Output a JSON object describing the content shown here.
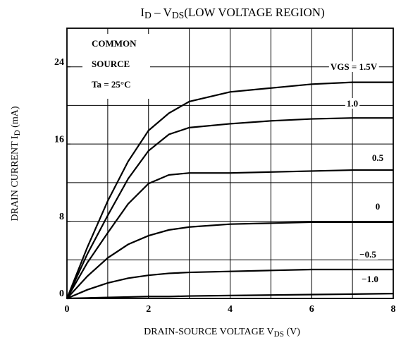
{
  "chart_data": {
    "type": "line",
    "title": [
      {
        "text": "I",
        "sub": false
      },
      {
        "text": "D",
        "sub": true
      },
      {
        "text": " – V",
        "sub": false
      },
      {
        "text": "DS",
        "sub": true
      },
      {
        "text": "(LOW VOLTAGE REGION)",
        "sub": false
      }
    ],
    "x_label": [
      {
        "text": "DRAIN-SOURCE  VOLTAGE  V",
        "sub": false
      },
      {
        "text": "DS",
        "sub": true
      },
      {
        "text": " (V)",
        "sub": false
      }
    ],
    "y_label": [
      {
        "text": "DRAIN  CURRENT  I",
        "sub": false
      },
      {
        "text": "D",
        "sub": true
      },
      {
        "text": "  (mA)",
        "sub": false
      }
    ],
    "annotations": [
      "COMMON",
      "SOURCE",
      "Ta = 25°C"
    ],
    "x": [
      0,
      0.5,
      1,
      1.5,
      2,
      2.5,
      3,
      4,
      5,
      6,
      7,
      8
    ],
    "series": [
      {
        "name": "VGS = 1.5V",
        "color": "#000000",
        "values": [
          0,
          5.3,
          10.1,
          14.2,
          17.4,
          19.2,
          20.4,
          21.4,
          21.8,
          22.2,
          22.4,
          22.4
        ]
      },
      {
        "name": "1.0",
        "color": "#000000",
        "values": [
          0,
          4.6,
          8.6,
          12.4,
          15.3,
          17.0,
          17.7,
          18.1,
          18.4,
          18.6,
          18.7,
          18.7
        ]
      },
      {
        "name": "0.5",
        "color": "#000000",
        "values": [
          0,
          3.7,
          6.8,
          9.8,
          11.9,
          12.8,
          13.0,
          13.0,
          13.1,
          13.2,
          13.3,
          13.3
        ]
      },
      {
        "name": "0",
        "color": "#000000",
        "values": [
          0,
          2.3,
          4.2,
          5.6,
          6.5,
          7.1,
          7.4,
          7.7,
          7.8,
          7.9,
          7.9,
          7.9
        ]
      },
      {
        "name": "−0.5",
        "color": "#000000",
        "values": [
          0,
          0.9,
          1.6,
          2.1,
          2.4,
          2.6,
          2.7,
          2.8,
          2.9,
          3.0,
          3.0,
          3.0
        ]
      },
      {
        "name": "−1.0",
        "color": "#000000",
        "values": [
          0,
          0.05,
          0.1,
          0.15,
          0.2,
          0.2,
          0.25,
          0.3,
          0.35,
          0.4,
          0.45,
          0.5
        ]
      }
    ],
    "xlim": [
      0,
      8
    ],
    "xticks": [
      0,
      2,
      4,
      6,
      8
    ],
    "xgrid": [
      1,
      2,
      3,
      4,
      5,
      6,
      7
    ],
    "ylim": [
      0,
      28
    ],
    "yticks": [
      0,
      8,
      16,
      24
    ],
    "ygrid": [
      4,
      8,
      12,
      16,
      20,
      24
    ],
    "grid": true
  }
}
